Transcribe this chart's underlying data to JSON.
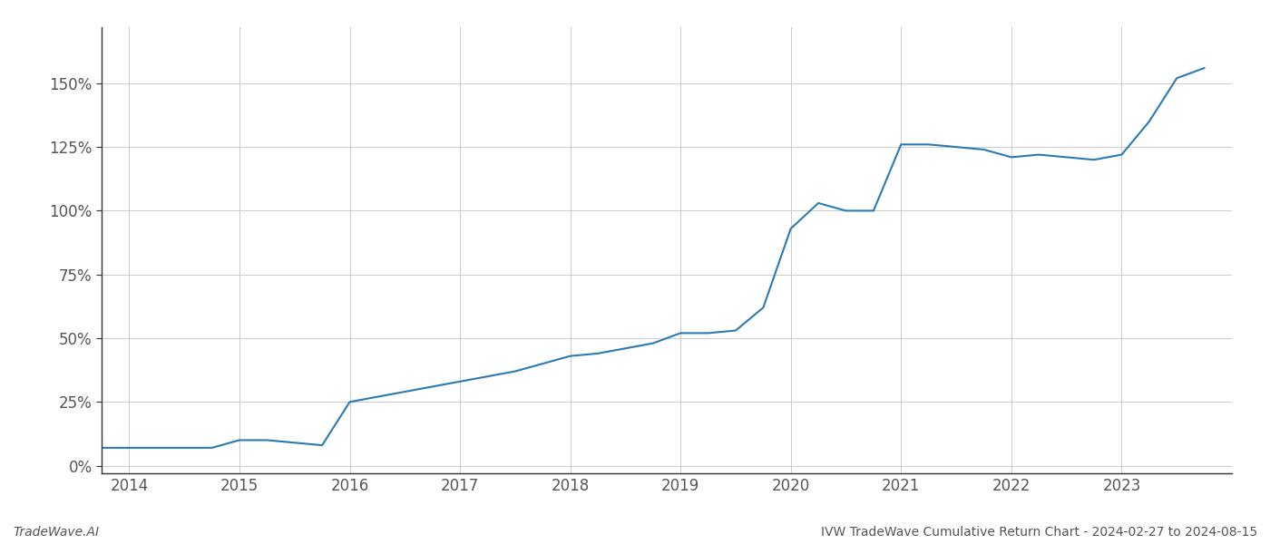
{
  "title": "IVW TradeWave Cumulative Return Chart - 2024-02-27 to 2024-08-15",
  "watermark_left": "TradeWave.AI",
  "line_color": "#2a7ab5",
  "background_color": "#ffffff",
  "grid_color": "#cccccc",
  "x_years": [
    2014,
    2015,
    2016,
    2017,
    2018,
    2019,
    2020,
    2021,
    2022,
    2023
  ],
  "x_data": [
    2013.75,
    2014.0,
    2014.25,
    2014.5,
    2014.75,
    2015.0,
    2015.25,
    2015.5,
    2015.75,
    2016.0,
    2016.25,
    2016.5,
    2016.75,
    2017.0,
    2017.25,
    2017.5,
    2017.75,
    2018.0,
    2018.25,
    2018.5,
    2018.75,
    2019.0,
    2019.25,
    2019.5,
    2019.75,
    2020.0,
    2020.25,
    2020.5,
    2020.75,
    2021.0,
    2021.25,
    2021.5,
    2021.75,
    2022.0,
    2022.25,
    2022.5,
    2022.75,
    2023.0,
    2023.25,
    2023.5,
    2023.75
  ],
  "y_data": [
    0.07,
    0.07,
    0.07,
    0.07,
    0.07,
    0.1,
    0.1,
    0.09,
    0.08,
    0.25,
    0.27,
    0.29,
    0.31,
    0.33,
    0.35,
    0.37,
    0.4,
    0.43,
    0.44,
    0.46,
    0.48,
    0.52,
    0.52,
    0.53,
    0.62,
    0.93,
    1.03,
    1.0,
    1.0,
    1.26,
    1.26,
    1.25,
    1.24,
    1.21,
    1.22,
    1.21,
    1.2,
    1.22,
    1.35,
    1.52,
    1.56
  ],
  "xlim": [
    2013.75,
    2024.0
  ],
  "ylim": [
    -0.03,
    1.72
  ],
  "yticks": [
    0.0,
    0.25,
    0.5,
    0.75,
    1.0,
    1.25,
    1.5
  ],
  "ytick_labels": [
    "0%",
    "25%",
    "50%",
    "75%",
    "100%",
    "125%",
    "150%"
  ],
  "line_width": 1.5,
  "tick_fontsize": 12,
  "footer_fontsize": 10,
  "spine_color": "#333333"
}
